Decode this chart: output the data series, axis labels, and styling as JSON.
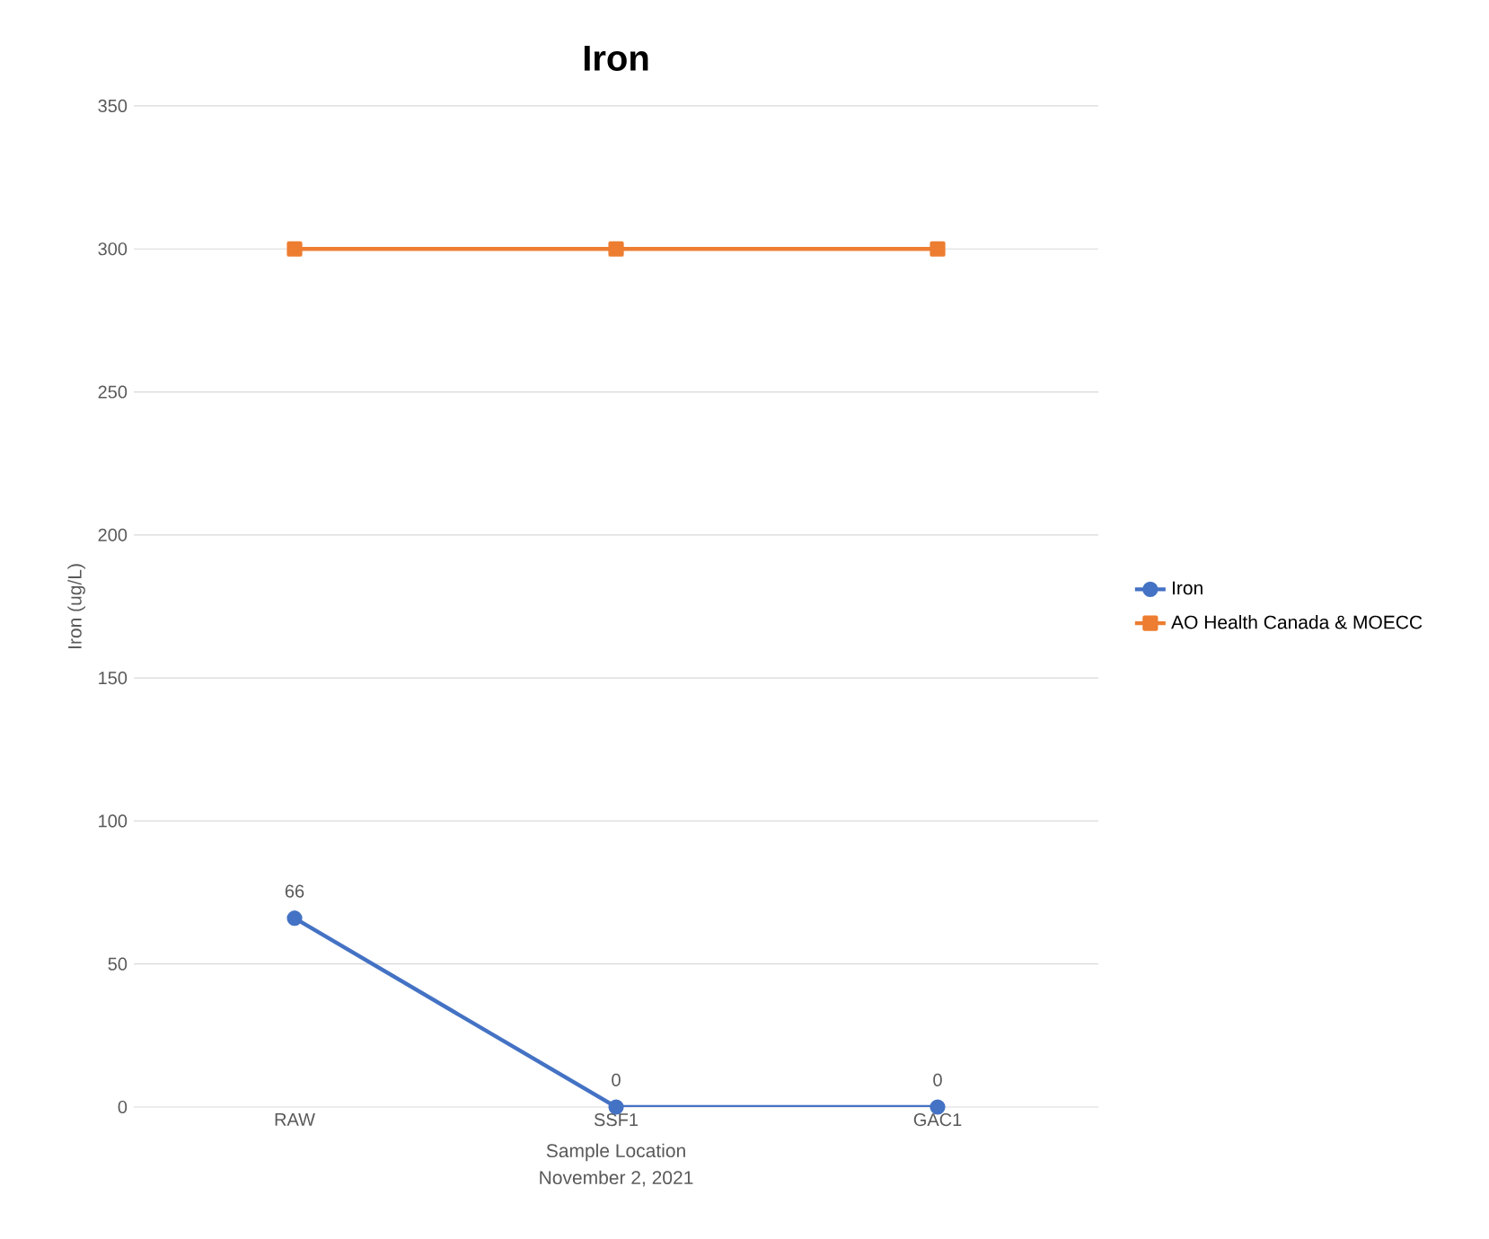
{
  "chart_data": {
    "type": "line",
    "title": "Iron",
    "xlabel": "Sample Location",
    "ylabel": "Iron (ug/L)",
    "annotations": [
      "November 2, 2021"
    ],
    "categories": [
      "RAW",
      "SSF1",
      "GAC1"
    ],
    "series": [
      {
        "name": "Iron",
        "color": "#4472c4",
        "marker": "circle",
        "values": [
          66,
          0,
          0
        ],
        "value_labels": [
          "66",
          "0",
          "0"
        ]
      },
      {
        "name": "AO Health Canada & MOECC",
        "color": "#ed7d31",
        "marker": "square",
        "values": [
          300,
          300,
          300
        ]
      }
    ],
    "ylim": [
      0,
      350
    ],
    "yticks": [
      0,
      50,
      100,
      150,
      200,
      250,
      300,
      350
    ],
    "grid": "y",
    "legend": "right"
  }
}
